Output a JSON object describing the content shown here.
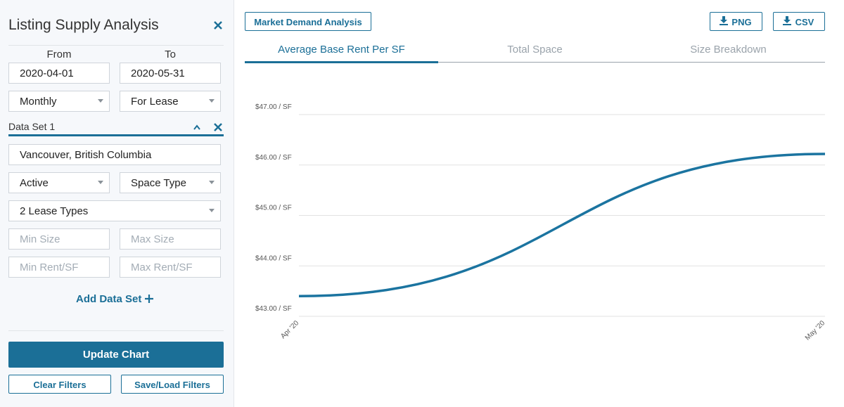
{
  "sidebar": {
    "title": "Listing Supply Analysis",
    "from_label": "From",
    "to_label": "To",
    "from_date": "2020-04-01",
    "to_date": "2020-05-31",
    "interval": "Monthly",
    "listing_type": "For Lease",
    "data_set_label": "Data Set 1",
    "location": "Vancouver, British Columbia",
    "status": "Active",
    "space_type": "Space Type",
    "lease_types": "2 Lease Types",
    "min_size": "Min Size",
    "max_size": "Max Size",
    "min_rent": "Min Rent/SF",
    "max_rent": "Max Rent/SF",
    "add_data_set": "Add Data Set",
    "update_chart": "Update Chart",
    "clear_filters": "Clear Filters",
    "save_load_filters": "Save/Load Filters"
  },
  "toolbar": {
    "market_demand": "Market Demand Analysis",
    "png": "PNG",
    "csv": "CSV"
  },
  "tabs": [
    "Average Base Rent Per SF",
    "Total Space",
    "Size Breakdown"
  ],
  "chart_data": {
    "type": "line",
    "categories": [
      "Apr '20",
      "May '20"
    ],
    "series": [
      {
        "name": "Average Base Rent Per SF",
        "color": "#1b74a0",
        "values": [
          43.4,
          46.22
        ]
      }
    ],
    "ylim": [
      43,
      47
    ],
    "yticks": [
      {
        "value": 43,
        "label": "$43.00 / SF"
      },
      {
        "value": 44,
        "label": "$44.00 / SF"
      },
      {
        "value": 45,
        "label": "$45.00 / SF"
      },
      {
        "value": 46,
        "label": "$46.00 / SF"
      },
      {
        "value": 47,
        "label": "$47.00 / SF"
      }
    ],
    "grid": true
  }
}
